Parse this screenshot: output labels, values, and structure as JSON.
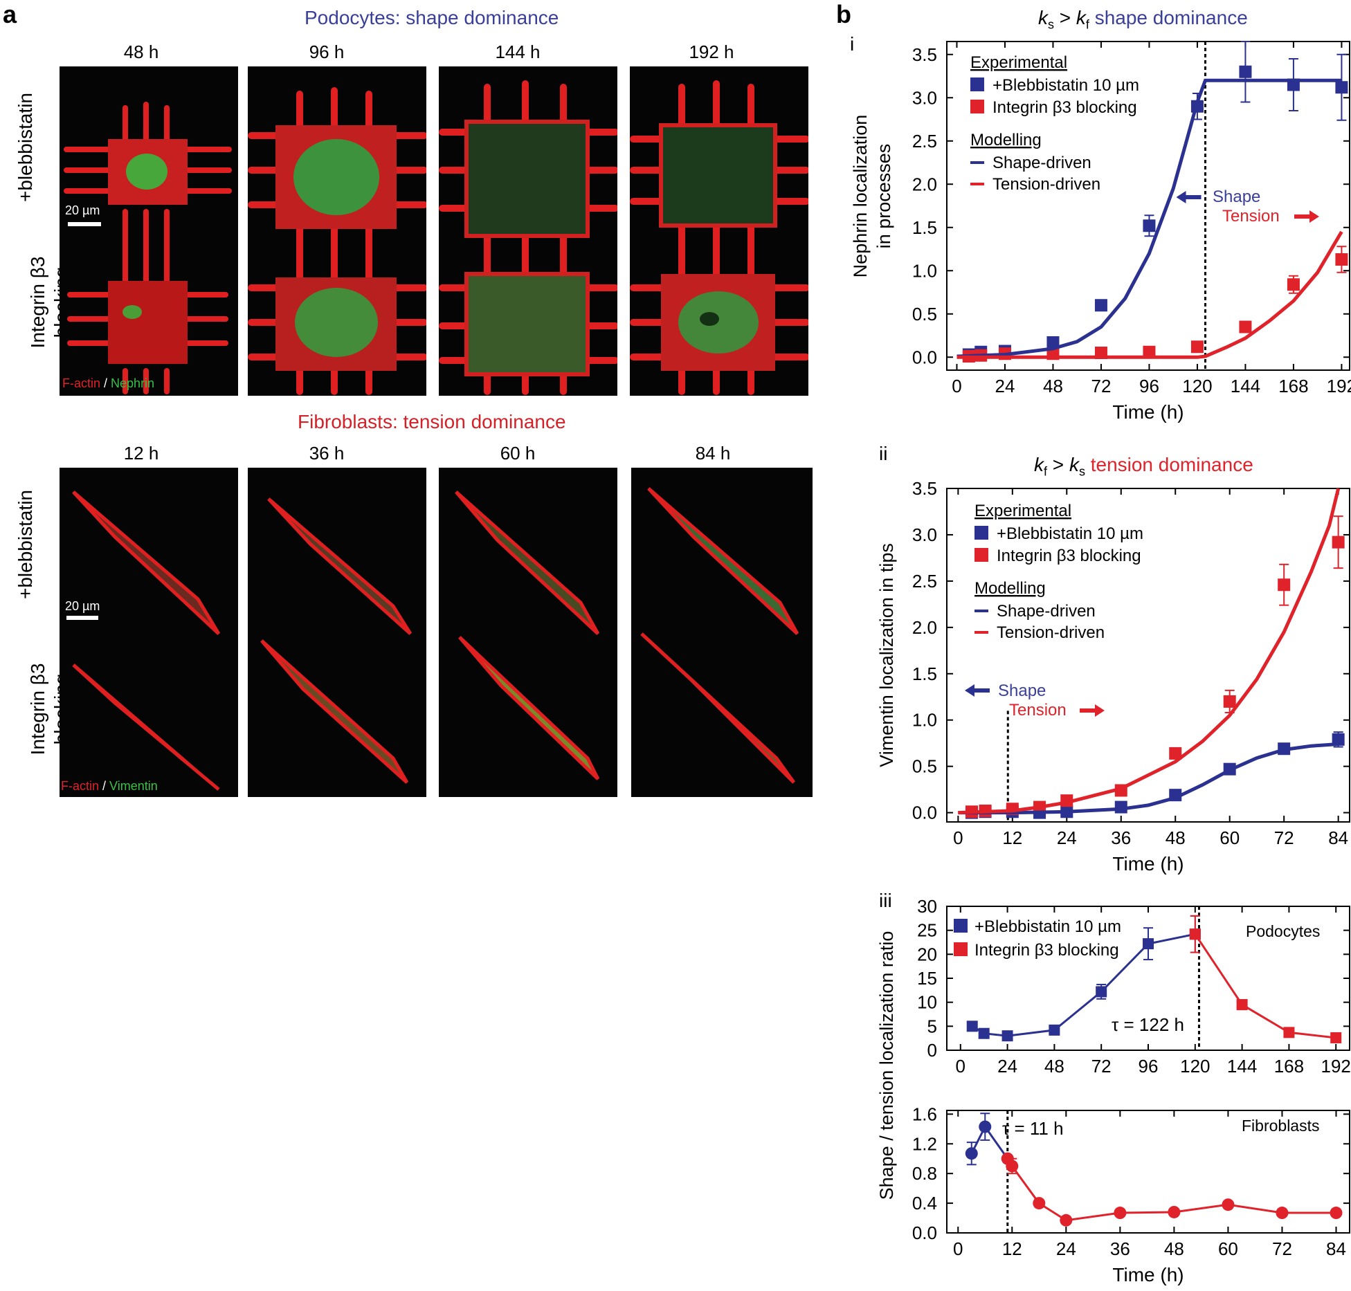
{
  "panel_a": {
    "letter": "a",
    "podocyte_title": "Podocytes: shape dominance",
    "podocyte_times": [
      "48 h",
      "96 h",
      "144 h",
      "192 h"
    ],
    "fibroblast_title": "Fibroblasts: tension dominance",
    "fibroblast_times": [
      "12 h",
      "36 h",
      "60 h",
      "84 h"
    ],
    "row_blebbistatin": "+blebbistatin",
    "row_integrin_line1": "Integrin β3",
    "row_integrin_line2": "blocking",
    "scalebar": "20 µm",
    "podocyte_stain_red": "F-actin",
    "podocyte_stain_sep": " / ",
    "podocyte_stain_green": "Nephrin",
    "fibroblast_stain_red": "F-actin",
    "fibroblast_stain_sep": " / ",
    "fibroblast_stain_green": "Vimentin"
  },
  "panel_b": {
    "letter": "b",
    "sub_i": "i",
    "sub_ii": "ii",
    "sub_iii": "iii"
  },
  "colors": {
    "blue": "#2b3190",
    "red": "#e0222a",
    "title_blue": "#3a3f9a"
  },
  "chart_data": [
    {
      "id": "b-i",
      "type": "line",
      "title": "ks > kf shape dominance",
      "xlabel": "Time (h)",
      "ylabel": [
        "Nephrin localization",
        "in processes"
      ],
      "xlim": [
        -5,
        196
      ],
      "ylim": [
        -0.15,
        3.65
      ],
      "xticks": [
        0,
        24,
        48,
        72,
        96,
        120,
        144,
        168,
        192
      ],
      "yticks": [
        0.0,
        0.5,
        1.0,
        1.5,
        2.0,
        2.5,
        3.0,
        3.5
      ],
      "legend": {
        "experimental_header": "Experimental",
        "modelling_header": "Modelling",
        "items": [
          "+Blebbistatin 10 µm",
          "Integrin β3 blocking"
        ],
        "model_items": [
          "Shape-driven",
          "Tension-driven"
        ]
      },
      "annotations": {
        "shape": "Shape",
        "tension": "Tension"
      },
      "vline_x": 124,
      "series": [
        {
          "name": "+Blebbistatin 10 µm",
          "color": "#2b3190",
          "points": [
            [
              6,
              0.03
            ],
            [
              12,
              0.06
            ],
            [
              24,
              0.07
            ],
            [
              48,
              0.17
            ],
            [
              72,
              0.6
            ],
            [
              96,
              1.52
            ],
            [
              120,
              2.9
            ],
            [
              144,
              3.3
            ],
            [
              168,
              3.15
            ],
            [
              192,
              3.12
            ]
          ],
          "err": [
            0.02,
            0.02,
            0.03,
            0.04,
            0.05,
            0.12,
            0.15,
            0.35,
            0.3,
            0.38
          ]
        },
        {
          "name": "Integrin β3 blocking",
          "color": "#e0222a",
          "points": [
            [
              6,
              0.01
            ],
            [
              12,
              0.02
            ],
            [
              24,
              0.04
            ],
            [
              48,
              0.04
            ],
            [
              72,
              0.05
            ],
            [
              96,
              0.06
            ],
            [
              120,
              0.12
            ],
            [
              144,
              0.35
            ],
            [
              168,
              0.84
            ],
            [
              192,
              1.13
            ]
          ],
          "err": [
            0.02,
            0.02,
            0.02,
            0.02,
            0.02,
            0.03,
            0.05,
            0.06,
            0.1,
            0.15
          ]
        },
        {
          "name": "Shape-driven",
          "color": "#2b3190",
          "model": true,
          "points": [
            [
              0,
              0.01
            ],
            [
              24,
              0.03
            ],
            [
              48,
              0.1
            ],
            [
              60,
              0.18
            ],
            [
              72,
              0.35
            ],
            [
              84,
              0.68
            ],
            [
              96,
              1.2
            ],
            [
              108,
              1.95
            ],
            [
              114,
              2.45
            ],
            [
              120,
              2.95
            ],
            [
              124,
              3.2
            ],
            [
              144,
              3.2
            ],
            [
              168,
              3.2
            ],
            [
              192,
              3.2
            ]
          ]
        },
        {
          "name": "Tension-driven",
          "color": "#e0222a",
          "model": true,
          "points": [
            [
              0,
              0
            ],
            [
              24,
              0
            ],
            [
              48,
              0
            ],
            [
              72,
              0
            ],
            [
              96,
              0
            ],
            [
              120,
              0
            ],
            [
              124,
              0.01
            ],
            [
              135,
              0.12
            ],
            [
              144,
              0.22
            ],
            [
              156,
              0.42
            ],
            [
              168,
              0.65
            ],
            [
              180,
              0.98
            ],
            [
              192,
              1.45
            ]
          ]
        }
      ]
    },
    {
      "id": "b-ii",
      "type": "line",
      "title": "kf > ks tension dominance",
      "xlabel": "Time (h)",
      "ylabel": [
        "Vimentin localization in tips"
      ],
      "xlim": [
        -2.5,
        86.5
      ],
      "ylim": [
        -0.1,
        3.5
      ],
      "xticks": [
        0,
        12,
        24,
        36,
        48,
        60,
        72,
        84
      ],
      "yticks": [
        0.0,
        0.5,
        1.0,
        1.5,
        2.0,
        2.5,
        3.0,
        3.5
      ],
      "legend": {
        "experimental_header": "Experimental",
        "modelling_header": "Modelling",
        "items": [
          "+Blebbistatin 10 µm",
          "Integrin β3 blocking"
        ],
        "model_items": [
          "Shape-driven",
          "Tension-driven"
        ]
      },
      "annotations": {
        "shape": "Shape",
        "tension": "Tension"
      },
      "vline_x": 11,
      "series": [
        {
          "name": "+Blebbistatin 10 µm",
          "color": "#2b3190",
          "points": [
            [
              3,
              0.0
            ],
            [
              6,
              0.01
            ],
            [
              12,
              0.01
            ],
            [
              18,
              0.0
            ],
            [
              24,
              0.01
            ],
            [
              36,
              0.06
            ],
            [
              48,
              0.19
            ],
            [
              60,
              0.47
            ],
            [
              72,
              0.69
            ],
            [
              84,
              0.79
            ]
          ],
          "err": [
            0.01,
            0.01,
            0.01,
            0.01,
            0.02,
            0.02,
            0.03,
            0.04,
            0.05,
            0.08
          ]
        },
        {
          "name": "Integrin β3 blocking",
          "color": "#e0222a",
          "points": [
            [
              3,
              0.01
            ],
            [
              6,
              0.02
            ],
            [
              12,
              0.04
            ],
            [
              18,
              0.06
            ],
            [
              24,
              0.13
            ],
            [
              36,
              0.24
            ],
            [
              48,
              0.64
            ],
            [
              60,
              1.2
            ],
            [
              72,
              2.46
            ],
            [
              84,
              2.92
            ]
          ],
          "err": [
            0.01,
            0.01,
            0.02,
            0.02,
            0.03,
            0.03,
            0.05,
            0.12,
            0.22,
            0.28
          ]
        },
        {
          "name": "Shape-driven",
          "color": "#2b3190",
          "model": true,
          "points": [
            [
              0,
              0
            ],
            [
              12,
              0
            ],
            [
              24,
              0.01
            ],
            [
              36,
              0.04
            ],
            [
              42,
              0.08
            ],
            [
              48,
              0.16
            ],
            [
              54,
              0.3
            ],
            [
              60,
              0.46
            ],
            [
              66,
              0.59
            ],
            [
              72,
              0.68
            ],
            [
              78,
              0.72
            ],
            [
              84,
              0.74
            ]
          ]
        },
        {
          "name": "Tension-driven",
          "color": "#e0222a",
          "model": true,
          "points": [
            [
              0,
              0
            ],
            [
              6,
              0.01
            ],
            [
              12,
              0.02
            ],
            [
              18,
              0.06
            ],
            [
              24,
              0.11
            ],
            [
              36,
              0.26
            ],
            [
              48,
              0.55
            ],
            [
              54,
              0.77
            ],
            [
              60,
              1.05
            ],
            [
              66,
              1.44
            ],
            [
              72,
              1.95
            ],
            [
              78,
              2.6
            ],
            [
              82,
              3.1
            ],
            [
              84,
              3.5
            ]
          ]
        }
      ]
    },
    {
      "id": "b-iii-top",
      "type": "line",
      "title": "",
      "xlabel": "",
      "ylabel": [
        "Shape / tension localization ratio"
      ],
      "xlim": [
        -7,
        199
      ],
      "ylim": [
        0,
        30
      ],
      "xticks": [
        0,
        24,
        48,
        72,
        96,
        120,
        144,
        168,
        192
      ],
      "yticks": [
        0,
        5,
        10,
        15,
        20,
        25,
        30
      ],
      "legend": {
        "items": [
          "+Blebbistatin 10 µm",
          "Integrin β3 blocking"
        ]
      },
      "annotations": {
        "label": "Podocytes",
        "tau": "τ = 122 h"
      },
      "vline_x": 122,
      "series": [
        {
          "name": "+Blebbistatin 10 µm",
          "color": "#2b3190",
          "marker": "square",
          "points": [
            [
              6,
              5.0
            ],
            [
              12,
              3.5
            ],
            [
              24,
              3.0
            ],
            [
              48,
              4.2
            ],
            [
              72,
              12.2
            ],
            [
              96,
              22.2
            ],
            [
              120,
              24.2
            ]
          ],
          "err": [
            0.4,
            0.4,
            0.4,
            0.5,
            1.5,
            3.3,
            3.8
          ]
        },
        {
          "name": "Integrin β3 blocking",
          "color": "#e0222a",
          "marker": "square",
          "points": [
            [
              120,
              24.2
            ],
            [
              144,
              9.5
            ],
            [
              168,
              3.7
            ],
            [
              192,
              2.6
            ]
          ],
          "err": [
            3.8,
            1.0,
            0.4,
            0.4
          ]
        }
      ]
    },
    {
      "id": "b-iii-bottom",
      "type": "line",
      "title": "",
      "xlabel": "Time (h)",
      "ylabel": [],
      "xlim": [
        -2.5,
        87
      ],
      "ylim": [
        0,
        1.65
      ],
      "xticks": [
        0,
        12,
        24,
        36,
        48,
        60,
        72,
        84
      ],
      "yticks": [
        0.0,
        0.4,
        0.8,
        1.2,
        1.6
      ],
      "annotations": {
        "label": "Fibroblasts",
        "tau": "τ = 11 h"
      },
      "vline_x": 11,
      "series": [
        {
          "name": "+Blebbistatin 10 µm",
          "color": "#2b3190",
          "marker": "circle",
          "points": [
            [
              3,
              1.07
            ],
            [
              6,
              1.43
            ],
            [
              11,
              1.0
            ]
          ],
          "err": [
            0.15,
            0.18,
            0.0
          ]
        },
        {
          "name": "Integrin β3 blocking",
          "color": "#e0222a",
          "marker": "circle",
          "points": [
            [
              11,
              1.0
            ],
            [
              12,
              0.9
            ],
            [
              18,
              0.4
            ],
            [
              24,
              0.17
            ],
            [
              36,
              0.27
            ],
            [
              48,
              0.28
            ],
            [
              60,
              0.38
            ],
            [
              72,
              0.27
            ],
            [
              84,
              0.27
            ]
          ],
          "err": [
            0.0,
            0.1,
            0.05,
            0.02,
            0.03,
            0.03,
            0.04,
            0.03,
            0.03
          ]
        }
      ]
    }
  ]
}
